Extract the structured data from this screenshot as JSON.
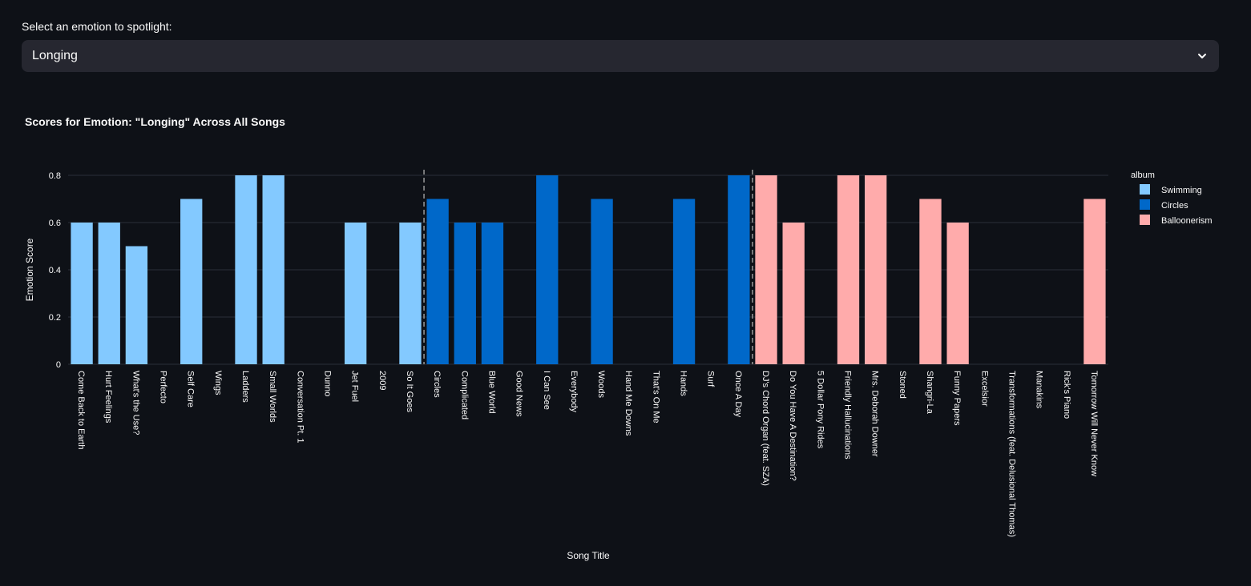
{
  "select": {
    "label": "Select an emotion to spotlight:",
    "value": "Longing"
  },
  "icons": {
    "dropdown": "chevron-down-icon"
  },
  "colors": {
    "background": "#0e1117",
    "grid": "#2b2f38",
    "axis_text": "#fafafa",
    "divider": "#999999"
  },
  "chart_data": {
    "type": "bar",
    "title": "Scores for Emotion: \"Longing\" Across All Songs",
    "xlabel": "Song Title",
    "ylabel": "Emotion Score",
    "ylim": [
      0,
      0.85
    ],
    "yticks": [
      0,
      0.2,
      0.4,
      0.6,
      0.8
    ],
    "ytick_labels": [
      "0",
      "0.2",
      "0.4",
      "0.6",
      "0.8"
    ],
    "legend": {
      "title": "album",
      "position": "right",
      "entries": [
        {
          "name": "Swimming",
          "color": "#83c9ff"
        },
        {
          "name": "Circles",
          "color": "#0068c9"
        },
        {
          "name": "Balloonerism",
          "color": "#ffabab"
        }
      ]
    },
    "album_dividers_after": [
      "So It Goes",
      "Once A Day"
    ],
    "categories": [
      "Come Back to Earth",
      "Hurt Feelings",
      "What's the Use?",
      "Perfecto",
      "Self Care",
      "Wings",
      "Ladders",
      "Small Worlds",
      "Conversation Pt. 1",
      "Dunno",
      "Jet Fuel",
      "2009",
      "So It Goes",
      "Circles",
      "Complicated",
      "Blue World",
      "Good News",
      "I Can See",
      "Everybody",
      "Woods",
      "Hand Me Downs",
      "That's On Me",
      "Hands",
      "Surf",
      "Once A Day",
      "DJ's Chord Organ (feat. SZA)",
      "Do You Have A Destination?",
      "5 Dollar Pony Rides",
      "Friendly Hallucinations",
      "Mrs. Deborah Downer",
      "Stoned",
      "Shangri-La",
      "Funny Papers",
      "Excelsior",
      "Transformations (feat. Delusional Thomas)",
      "Manakins",
      "Rick's Piano",
      "Tomorrow Will Never Know"
    ],
    "albums": [
      "Swimming",
      "Swimming",
      "Swimming",
      "Swimming",
      "Swimming",
      "Swimming",
      "Swimming",
      "Swimming",
      "Swimming",
      "Swimming",
      "Swimming",
      "Swimming",
      "Swimming",
      "Circles",
      "Circles",
      "Circles",
      "Circles",
      "Circles",
      "Circles",
      "Circles",
      "Circles",
      "Circles",
      "Circles",
      "Circles",
      "Circles",
      "Balloonerism",
      "Balloonerism",
      "Balloonerism",
      "Balloonerism",
      "Balloonerism",
      "Balloonerism",
      "Balloonerism",
      "Balloonerism",
      "Balloonerism",
      "Balloonerism",
      "Balloonerism",
      "Balloonerism",
      "Balloonerism"
    ],
    "values": [
      0.6,
      0.6,
      0.5,
      0,
      0.7,
      0,
      0.8,
      0.8,
      0,
      0,
      0.6,
      0,
      0.6,
      0.7,
      0.6,
      0.6,
      0,
      0.8,
      0,
      0.7,
      0,
      0,
      0.7,
      0,
      0.8,
      0.8,
      0.6,
      0,
      0.8,
      0.8,
      0,
      0.7,
      0.6,
      0,
      0,
      0,
      0,
      0.7
    ]
  }
}
